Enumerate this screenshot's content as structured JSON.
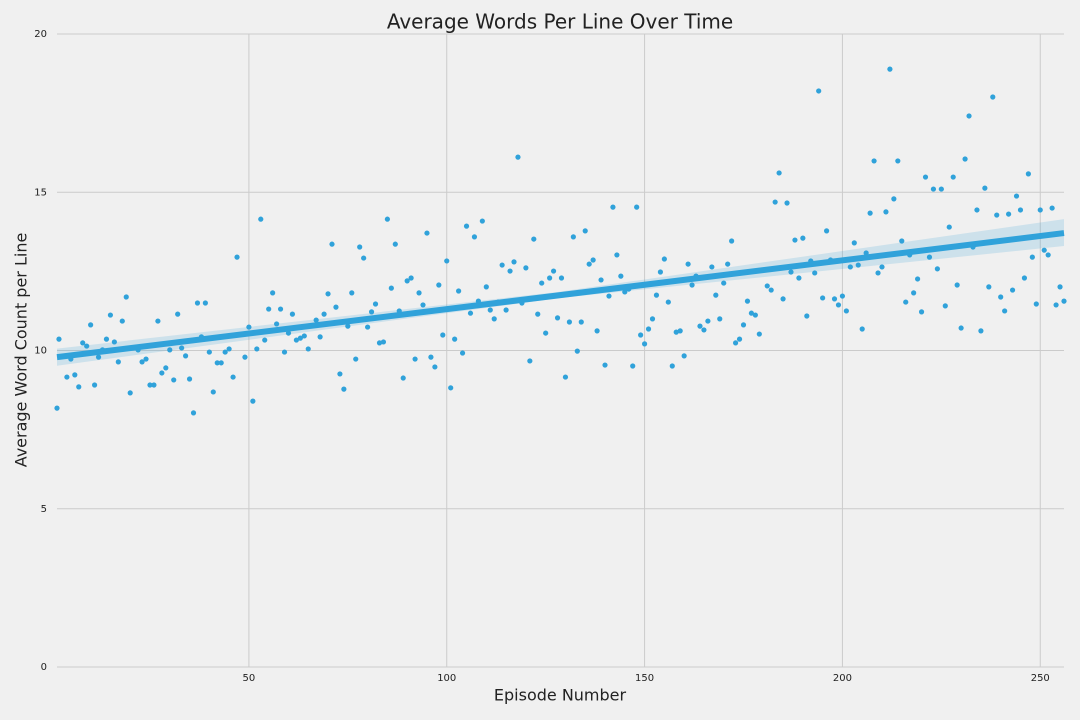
{
  "chart_data": {
    "type": "scatter",
    "title": "Average Words Per Line Over Time",
    "x_label": "Episode Number",
    "y_label": "Average Word Count per Line",
    "color": "#30a2da",
    "grid": true,
    "xlim": [
      1.5,
      256
    ],
    "ylim": [
      0,
      20
    ],
    "xticks": [
      50,
      100,
      150,
      200,
      250
    ],
    "yticks": [
      0,
      5,
      10,
      15,
      20
    ],
    "x": [
      1.5,
      2,
      4,
      5,
      6,
      7,
      8,
      9,
      10,
      11,
      12,
      13,
      14,
      15,
      16,
      17,
      18,
      19,
      20,
      22,
      23,
      24,
      25,
      26,
      27,
      28,
      29,
      30,
      31,
      32,
      33,
      34,
      35,
      36,
      37,
      38,
      39,
      40,
      41,
      42,
      43,
      44,
      45,
      46,
      47,
      49,
      50,
      51,
      52,
      53,
      54,
      55,
      56,
      57,
      58,
      59,
      60,
      61,
      62,
      63,
      64,
      65,
      67,
      68,
      69,
      70,
      71,
      72,
      73,
      74,
      75,
      76,
      77,
      78,
      79,
      80,
      81,
      82,
      83,
      84,
      85,
      86,
      87,
      88,
      89,
      90,
      91,
      92,
      93,
      94,
      95,
      96,
      97,
      98,
      99,
      100,
      101,
      102,
      103,
      104,
      105,
      106,
      107,
      108,
      109,
      110,
      111,
      112,
      113,
      114,
      115,
      116,
      117,
      118,
      119,
      120,
      121,
      122,
      123,
      124,
      125,
      126,
      127,
      128,
      129,
      130,
      131,
      132,
      133,
      134,
      135,
      136,
      137,
      138,
      139,
      140,
      141,
      142,
      143,
      144,
      145,
      146,
      147,
      148,
      149,
      150,
      151,
      152,
      153,
      154,
      155,
      156,
      157,
      158,
      159,
      160,
      161,
      162,
      163,
      164,
      165,
      166,
      167,
      168,
      169,
      170,
      171,
      172,
      173,
      174,
      175,
      176,
      177,
      178,
      179,
      181,
      182,
      183,
      184,
      185,
      186,
      187,
      188,
      189,
      190,
      191,
      192,
      193,
      194,
      195,
      196,
      197,
      198,
      199,
      200,
      201,
      202,
      203,
      204,
      205,
      206,
      207,
      208,
      209,
      210,
      211,
      212,
      213,
      214,
      215,
      216,
      217,
      218,
      219,
      220,
      221,
      222,
      223,
      224,
      225,
      226,
      227,
      228,
      229,
      230,
      231,
      232,
      233,
      234,
      235,
      236,
      237,
      238,
      239,
      240,
      241,
      242,
      243,
      244,
      245,
      246,
      247,
      248,
      249,
      250,
      251,
      252,
      253,
      254,
      255,
      256
    ],
    "values": [
      8.18,
      10.36,
      9.16,
      9.73,
      9.23,
      8.85,
      10.24,
      10.14,
      10.81,
      8.91,
      9.79,
      10.02,
      10.36,
      11.12,
      10.27,
      9.64,
      10.93,
      11.69,
      8.66,
      10.02,
      9.64,
      9.73,
      8.91,
      8.91,
      10.93,
      9.29,
      9.45,
      10.02,
      9.07,
      11.15,
      10.08,
      9.83,
      9.1,
      8.03,
      11.5,
      10.43,
      11.5,
      9.95,
      8.69,
      9.61,
      9.61,
      9.95,
      10.05,
      9.16,
      12.95,
      9.79,
      10.74,
      8.4,
      10.05,
      14.15,
      10.33,
      11.31,
      11.82,
      10.84,
      11.31,
      9.95,
      10.55,
      11.15,
      10.33,
      10.39,
      10.46,
      10.05,
      10.96,
      10.43,
      11.15,
      11.79,
      13.36,
      11.37,
      9.26,
      8.78,
      10.77,
      11.82,
      9.73,
      13.27,
      12.92,
      10.74,
      11.22,
      11.47,
      10.24,
      10.27,
      14.15,
      11.97,
      13.36,
      11.25,
      9.13,
      12.2,
      12.29,
      9.73,
      11.82,
      11.44,
      13.71,
      9.79,
      9.48,
      12.07,
      10.49,
      12.83,
      8.82,
      10.36,
      11.88,
      9.92,
      13.93,
      11.18,
      13.59,
      11.56,
      14.09,
      12.01,
      11.28,
      11.0,
      11.53,
      12.7,
      11.28,
      12.51,
      12.8,
      16.11,
      11.5,
      12.61,
      9.67,
      13.52,
      11.15,
      12.13,
      10.55,
      12.29,
      12.51,
      11.03,
      12.29,
      9.16,
      10.9,
      13.59,
      9.98,
      10.9,
      13.78,
      12.73,
      12.86,
      10.62,
      12.23,
      9.54,
      11.72,
      14.53,
      13.02,
      12.35,
      11.85,
      11.94,
      9.51,
      14.53,
      10.49,
      10.21,
      10.68,
      11.0,
      11.75,
      12.48,
      12.89,
      11.53,
      9.51,
      10.58,
      10.62,
      9.83,
      12.73,
      12.07,
      12.35,
      10.77,
      10.65,
      10.93,
      12.64,
      11.75,
      11.0,
      12.13,
      12.73,
      13.46,
      10.24,
      10.36,
      10.81,
      11.56,
      11.18,
      11.12,
      10.52,
      12.04,
      11.91,
      14.69,
      15.61,
      11.63,
      14.66,
      12.48,
      13.49,
      12.29,
      13.55,
      11.09,
      12.83,
      12.45,
      18.2,
      11.66,
      13.78,
      12.86,
      11.63,
      11.44,
      11.72,
      11.25,
      12.64,
      13.4,
      12.7,
      10.68,
      13.08,
      14.34,
      15.99,
      12.45,
      12.64,
      14.38,
      18.89,
      14.79,
      15.99,
      13.46,
      11.53,
      13.02,
      11.82,
      12.26,
      11.22,
      15.48,
      12.95,
      15.1,
      12.58,
      15.1,
      11.41,
      13.9,
      15.48,
      12.07,
      10.71,
      16.05,
      17.41,
      13.27,
      14.44,
      10.62,
      15.13,
      12.01,
      18.01,
      14.28,
      11.69,
      11.25,
      14.31,
      11.91,
      14.88,
      14.44,
      12.29,
      15.58,
      12.95,
      11.47,
      14.44,
      13.17,
      13.02,
      14.5,
      11.44,
      12.01,
      11.56
    ],
    "trend": {
      "color": "#30a2da",
      "x": [
        1.5,
        256
      ],
      "values": [
        9.79,
        13.71
      ]
    },
    "band": {
      "x": [
        1.5,
        128,
        256
      ],
      "lower": [
        9.52,
        11.65,
        13.3
      ],
      "upper": [
        10.06,
        11.85,
        14.15
      ]
    }
  }
}
